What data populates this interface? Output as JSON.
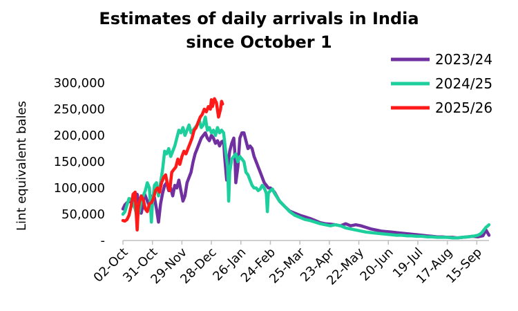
{
  "chart_data": {
    "type": "line",
    "title": "Estimates of daily arrivals in India",
    "subtitle": "since October 1",
    "ylabel": "Lint equivalent bales",
    "xlabel": "",
    "ylim": [
      0,
      300000
    ],
    "yticks": [
      "-",
      "50,000",
      "100,000",
      "150,000",
      "200,000",
      "250,000",
      "300,000"
    ],
    "ytick_values": [
      0,
      50000,
      100000,
      150000,
      200000,
      250000,
      300000
    ],
    "xticks": [
      "02-Oct",
      "31-Oct",
      "29-Nov",
      "28-Dec",
      "26-Jan",
      "24-Feb",
      "25-Mar",
      "23-Apr",
      "22-May",
      "20-Jun",
      "19-Jul",
      "17-Aug",
      "15-Sep"
    ],
    "xtick_days": [
      1,
      30,
      59,
      88,
      117,
      146,
      175,
      204,
      233,
      262,
      291,
      320,
      349
    ],
    "x_unit": "days since October 1",
    "xlim": [
      1,
      361
    ],
    "grid": false,
    "legend_position": "top-right",
    "series": [
      {
        "name": "2023/24",
        "color": "#7030a0",
        "x": [
          1,
          3,
          5,
          8,
          10,
          13,
          15,
          17,
          19,
          20,
          22,
          24,
          26,
          28,
          30,
          32,
          34,
          36,
          38,
          40,
          42,
          44,
          46,
          48,
          50,
          52,
          54,
          56,
          58,
          60,
          62,
          64,
          66,
          68,
          70,
          72,
          74,
          76,
          78,
          80,
          82,
          84,
          86,
          88,
          90,
          92,
          94,
          96,
          98,
          100,
          101,
          103,
          104,
          106,
          108,
          110,
          111,
          112,
          114,
          116,
          118,
          120,
          122,
          124,
          126,
          128,
          130,
          132,
          134,
          136,
          138,
          140,
          142,
          144,
          146,
          150,
          155,
          160,
          165,
          170,
          175,
          180,
          185,
          190,
          195,
          200,
          205,
          210,
          215,
          220,
          225,
          230,
          235,
          240,
          245,
          250,
          255,
          260,
          265,
          270,
          275,
          280,
          285,
          290,
          295,
          300,
          305,
          310,
          315,
          320,
          325,
          330,
          335,
          340,
          345,
          350,
          355,
          358,
          361
        ],
        "values": [
          60000,
          68000,
          72000,
          75000,
          70000,
          85000,
          88000,
          65000,
          52000,
          62000,
          90000,
          80000,
          70000,
          78000,
          85000,
          82000,
          60000,
          35000,
          70000,
          90000,
          105000,
          110000,
          95000,
          100000,
          85000,
          105000,
          100000,
          115000,
          95000,
          75000,
          85000,
          110000,
          120000,
          130000,
          150000,
          165000,
          175000,
          185000,
          195000,
          200000,
          205000,
          195000,
          190000,
          200000,
          195000,
          185000,
          190000,
          180000,
          188000,
          190000,
          160000,
          115000,
          140000,
          170000,
          185000,
          195000,
          170000,
          110000,
          140000,
          195000,
          205000,
          205000,
          190000,
          175000,
          180000,
          175000,
          160000,
          150000,
          140000,
          130000,
          120000,
          110000,
          105000,
          100000,
          100000,
          92000,
          75000,
          65000,
          56000,
          52000,
          48000,
          45000,
          42000,
          38000,
          34000,
          32000,
          31000,
          30000,
          28000,
          32000,
          28000,
          30000,
          28000,
          25000,
          22000,
          20000,
          18000,
          17000,
          16000,
          15000,
          14000,
          13000,
          12000,
          11000,
          10000,
          9000,
          8000,
          7000,
          7000,
          6000,
          6000,
          5000,
          6000,
          7000,
          8000,
          7000,
          9000,
          20000,
          10000
        ]
      },
      {
        "name": "2024/25",
        "color": "#1ccf9c",
        "x": [
          1,
          3,
          5,
          7,
          9,
          11,
          13,
          15,
          17,
          19,
          21,
          23,
          25,
          27,
          28,
          29,
          30,
          32,
          34,
          36,
          38,
          40,
          42,
          44,
          46,
          48,
          50,
          52,
          54,
          56,
          58,
          60,
          62,
          64,
          66,
          68,
          70,
          72,
          74,
          76,
          78,
          80,
          82,
          84,
          86,
          88,
          90,
          92,
          94,
          96,
          98,
          100,
          102,
          104,
          105,
          106,
          108,
          110,
          112,
          114,
          116,
          118,
          120,
          122,
          124,
          126,
          128,
          130,
          132,
          134,
          136,
          138,
          140,
          142,
          143,
          144,
          146,
          148,
          150,
          155,
          160,
          165,
          170,
          175,
          180,
          185,
          190,
          195,
          200,
          205,
          210,
          215,
          220,
          225,
          230,
          235,
          240,
          245,
          250,
          255,
          260,
          265,
          270,
          275,
          280,
          285,
          290,
          295,
          300,
          305,
          310,
          315,
          320,
          325,
          330,
          335,
          340,
          345,
          350,
          352,
          354,
          356,
          358,
          360,
          361
        ],
        "values": [
          50000,
          55000,
          68000,
          80000,
          78000,
          70000,
          60000,
          45000,
          55000,
          75000,
          85000,
          95000,
          110000,
          100000,
          70000,
          35000,
          70000,
          105000,
          110000,
          85000,
          110000,
          135000,
          170000,
          165000,
          175000,
          160000,
          170000,
          180000,
          195000,
          210000,
          205000,
          215000,
          200000,
          210000,
          220000,
          205000,
          210000,
          215000,
          220000,
          230000,
          215000,
          220000,
          235000,
          210000,
          215000,
          205000,
          210000,
          200000,
          215000,
          205000,
          210000,
          205000,
          170000,
          140000,
          75000,
          130000,
          155000,
          160000,
          165000,
          150000,
          160000,
          155000,
          150000,
          130000,
          125000,
          115000,
          105000,
          100000,
          100000,
          95000,
          98000,
          105000,
          100000,
          90000,
          55000,
          90000,
          95000,
          98000,
          90000,
          75000,
          65000,
          55000,
          48000,
          44000,
          40000,
          38000,
          35000,
          32000,
          30000,
          28000,
          30000,
          28000,
          24000,
          22000,
          20000,
          18000,
          16000,
          15000,
          14000,
          13000,
          12000,
          11000,
          10000,
          10000,
          9000,
          9000,
          8000,
          8000,
          7000,
          7000,
          6000,
          6000,
          6000,
          5000,
          5000,
          6000,
          7000,
          8000,
          10000,
          12000,
          15000,
          20000,
          25000,
          28000,
          30000
        ]
      },
      {
        "name": "2025/26",
        "color": "#ff1a1a",
        "x": [
          1,
          3,
          5,
          7,
          9,
          11,
          13,
          14,
          15,
          16,
          17,
          19,
          21,
          23,
          25,
          27,
          29,
          31,
          33,
          35,
          37,
          39,
          41,
          43,
          45,
          47,
          49,
          51,
          53,
          55,
          57,
          59,
          61,
          63,
          65,
          67,
          69,
          71,
          73,
          75,
          77,
          79,
          81,
          83,
          85,
          87,
          88,
          89,
          91,
          93,
          95,
          97,
          98,
          99
        ],
        "values": [
          38000,
          37000,
          40000,
          48000,
          65000,
          88000,
          92000,
          55000,
          20000,
          60000,
          72000,
          85000,
          78000,
          60000,
          55000,
          70000,
          72000,
          80000,
          95000,
          100000,
          92000,
          110000,
          120000,
          125000,
          105000,
          95000,
          130000,
          135000,
          140000,
          155000,
          145000,
          160000,
          170000,
          165000,
          175000,
          185000,
          195000,
          210000,
          215000,
          225000,
          235000,
          240000,
          250000,
          245000,
          255000,
          250000,
          268000,
          255000,
          270000,
          262000,
          235000,
          250000,
          265000,
          260000
        ]
      }
    ]
  }
}
